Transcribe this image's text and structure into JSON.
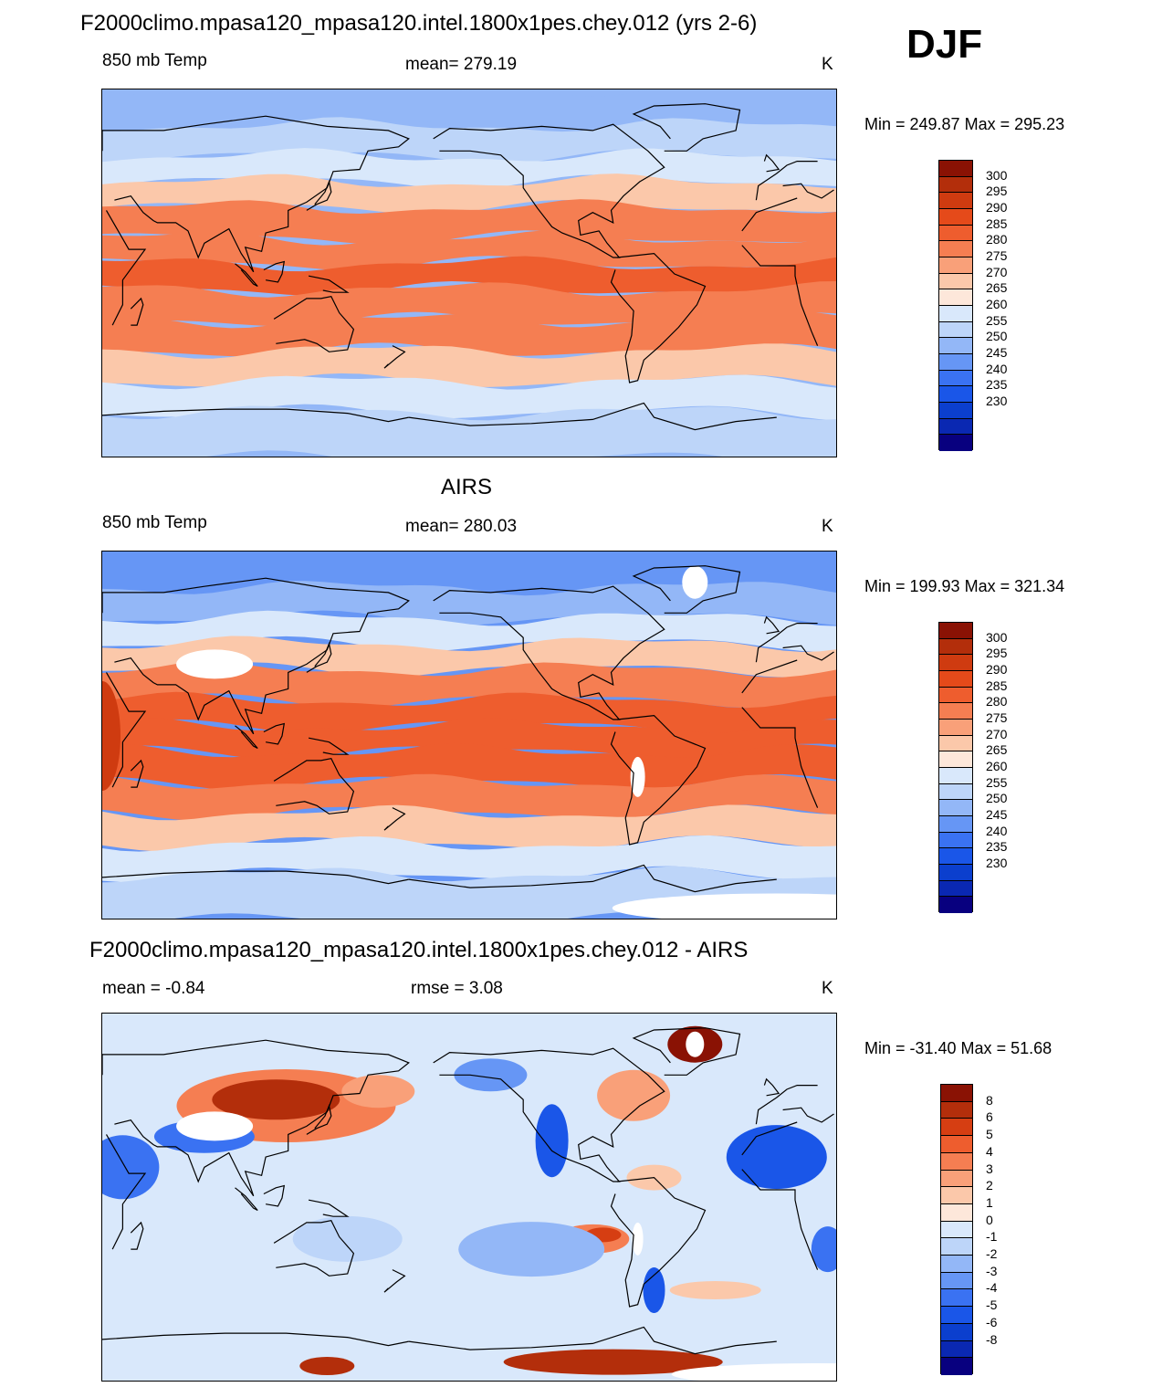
{
  "season": "DJF",
  "colors": {
    "abs_scale": [
      "#08007f",
      "#0a28b2",
      "#0b3fce",
      "#1a56e8",
      "#3a72f2",
      "#6696f5",
      "#93b7f7",
      "#bdd5f9",
      "#d9e8fb",
      "#fde7da",
      "#fbc8aa",
      "#f9a079",
      "#f57e52",
      "#ee5d2e",
      "#e54a1a",
      "#cf3b10",
      "#b32e0b",
      "#8a1204"
    ],
    "diff_scale": [
      "#08007f",
      "#0a28b2",
      "#0b3fce",
      "#1a56e8",
      "#3a72f2",
      "#6696f5",
      "#93b7f7",
      "#bdd5f9",
      "#d9e8fb",
      "#fde7da",
      "#fbc8aa",
      "#f9a079",
      "#f57e52",
      "#ee5d2e",
      "#d63e12",
      "#b32e0b",
      "#8a1204"
    ]
  },
  "panels": [
    {
      "title": "F2000climo.mpasa120_mpasa120.intel.1800x1pes.chey.012 (yrs 2-6)",
      "variable": "850 mb Temp",
      "stat_center": "mean= 279.19",
      "units": "K",
      "minmax": "Min = 249.87 Max = 295.23",
      "colorbar_labels": [
        "300",
        "295",
        "290",
        "285",
        "280",
        "275",
        "270",
        "265",
        "260",
        "255",
        "250",
        "245",
        "240",
        "235",
        "230"
      ]
    },
    {
      "title": "AIRS",
      "variable": "850 mb Temp",
      "stat_center": "mean= 280.03",
      "units": "K",
      "minmax": "Min = 199.93 Max = 321.34",
      "colorbar_labels": [
        "300",
        "295",
        "290",
        "285",
        "280",
        "275",
        "270",
        "265",
        "260",
        "255",
        "250",
        "245",
        "240",
        "235",
        "230"
      ]
    },
    {
      "title": "F2000climo.mpasa120_mpasa120.intel.1800x1pes.chey.012 - AIRS",
      "stat_left": "mean =  -0.84",
      "stat_center": "rmse =   3.08",
      "units": "K",
      "minmax": "Min = -31.40 Max =  51.68",
      "colorbar_labels": [
        "8",
        "6",
        "5",
        "4",
        "3",
        "2",
        "1",
        "0",
        "-1",
        "-2",
        "-3",
        "-4",
        "-5",
        "-6",
        "-8"
      ]
    }
  ],
  "chart_data": [
    {
      "type": "heatmap",
      "title": "F2000climo.mpasa120_mpasa120.intel.1800x1pes.chey.012 (yrs 2-6)",
      "variable": "850 mb Temp",
      "units": "K",
      "mean": 279.19,
      "min": 249.87,
      "max": 295.23,
      "contour_levels": [
        230,
        235,
        240,
        245,
        250,
        255,
        260,
        265,
        270,
        275,
        280,
        285,
        290,
        295,
        300
      ],
      "latitude_band_values_K": [
        {
          "lat": 80,
          "value": 255
        },
        {
          "lat": 65,
          "value": 260
        },
        {
          "lat": 50,
          "value": 268
        },
        {
          "lat": 40,
          "value": 276
        },
        {
          "lat": 25,
          "value": 285
        },
        {
          "lat": 10,
          "value": 289
        },
        {
          "lat": 0,
          "value": 290
        },
        {
          "lat": -15,
          "value": 289
        },
        {
          "lat": -30,
          "value": 285
        },
        {
          "lat": -45,
          "value": 277
        },
        {
          "lat": -60,
          "value": 268
        },
        {
          "lat": -75,
          "value": 262
        }
      ]
    },
    {
      "type": "heatmap",
      "title": "AIRS",
      "variable": "850 mb Temp",
      "units": "K",
      "mean": 280.03,
      "min": 199.93,
      "max": 321.34,
      "contour_levels": [
        230,
        235,
        240,
        245,
        250,
        255,
        260,
        265,
        270,
        275,
        280,
        285,
        290,
        295,
        300
      ],
      "latitude_band_values_K": [
        {
          "lat": 80,
          "value": 254
        },
        {
          "lat": 65,
          "value": 259
        },
        {
          "lat": 50,
          "value": 267
        },
        {
          "lat": 40,
          "value": 276
        },
        {
          "lat": 25,
          "value": 286
        },
        {
          "lat": 10,
          "value": 291
        },
        {
          "lat": 0,
          "value": 292
        },
        {
          "lat": -15,
          "value": 291
        },
        {
          "lat": -30,
          "value": 286
        },
        {
          "lat": -45,
          "value": 277
        },
        {
          "lat": -60,
          "value": 267
        },
        {
          "lat": -75,
          "value": 260
        }
      ]
    },
    {
      "type": "heatmap",
      "title": "F2000climo.mpasa120_mpasa120.intel.1800x1pes.chey.012 - AIRS",
      "units": "K",
      "mean": -0.84,
      "rmse": 3.08,
      "min": -31.4,
      "max": 51.68,
      "contour_levels": [
        -8,
        -6,
        -5,
        -4,
        -3,
        -2,
        -1,
        0,
        1,
        2,
        3,
        4,
        5,
        6,
        8
      ]
    }
  ]
}
